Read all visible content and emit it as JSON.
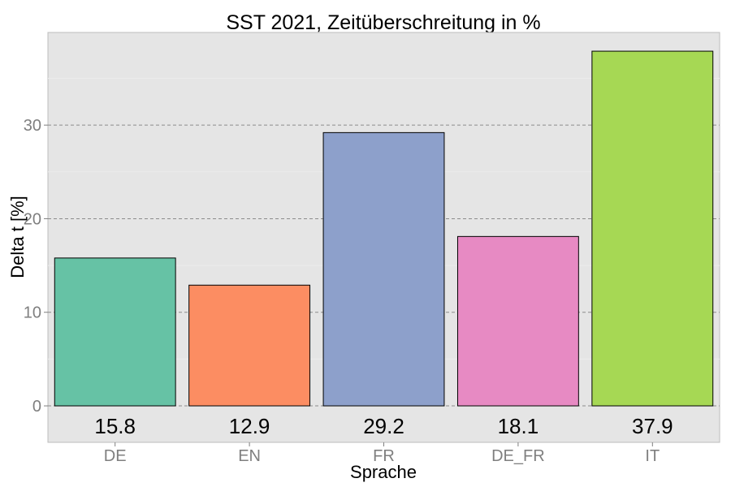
{
  "chart_data": {
    "type": "bar",
    "title": "SST 2021, Zeitüberschreitung in %",
    "xlabel": "Sprache",
    "ylabel": "Delta t [%]",
    "categories": [
      "DE",
      "EN",
      "FR",
      "DE_FR",
      "IT"
    ],
    "values": [
      15.8,
      12.9,
      29.2,
      18.1,
      37.9
    ],
    "value_labels": [
      "15.8",
      "12.9",
      "29.2",
      "18.1",
      "37.9"
    ],
    "colors": [
      "#66c2a5",
      "#fc8d62",
      "#8da0cb",
      "#e78ac3",
      "#a6d854"
    ],
    "yticks": [
      0,
      10,
      20,
      30
    ],
    "ylim": [
      -3.9,
      39.9
    ],
    "grid": true,
    "legend": "none",
    "background": "#e5e5e5"
  }
}
